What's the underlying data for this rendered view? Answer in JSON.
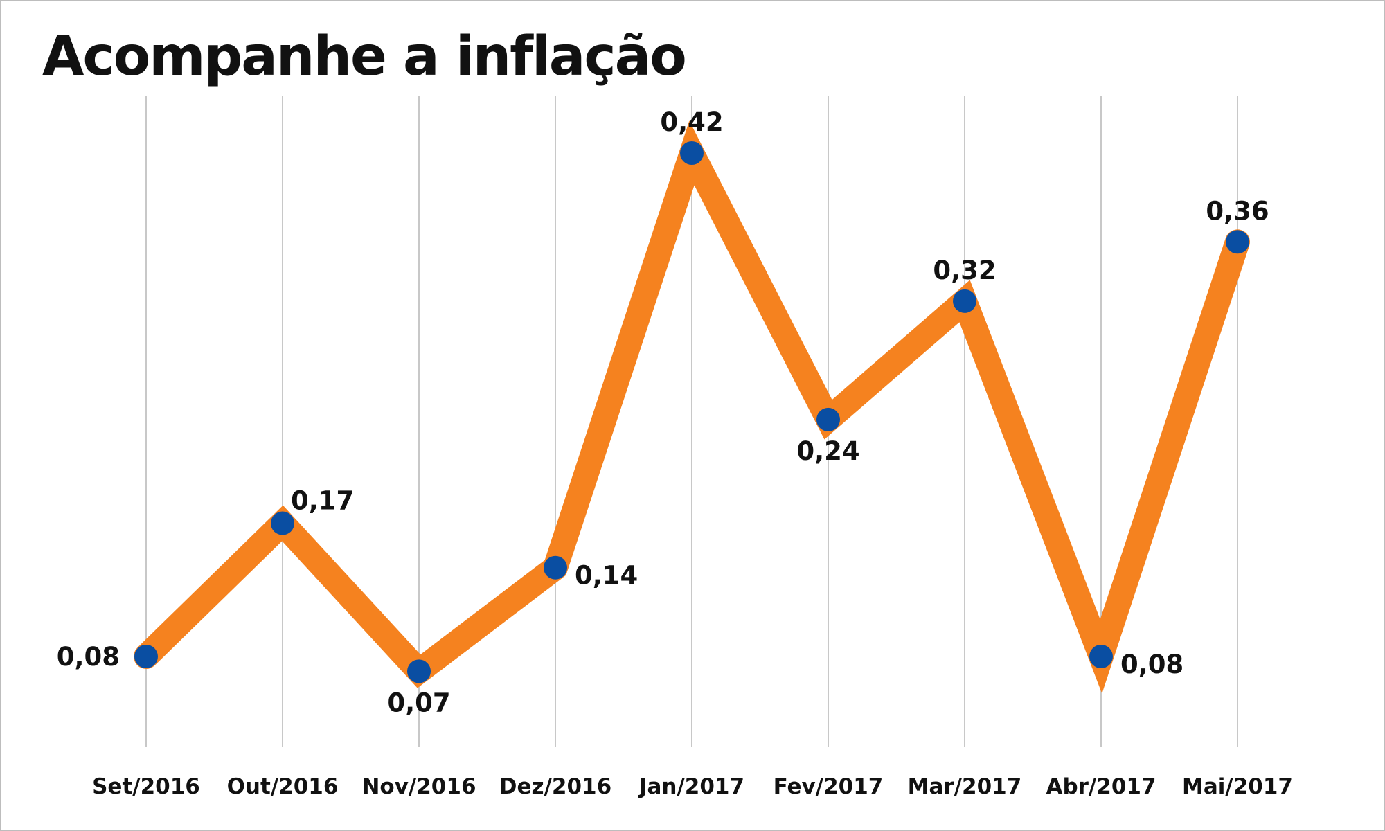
{
  "chart_data": {
    "type": "line",
    "title": "Acompanhe a inflação",
    "xlabel": "",
    "ylabel": "",
    "categories": [
      "Set/2016",
      "Out/2016",
      "Nov/2016",
      "Dez/2016",
      "Jan/2017",
      "Fev/2017",
      "Mar/2017",
      "Abr/2017",
      "Mai/2017"
    ],
    "values": [
      0.08,
      0.17,
      0.07,
      0.14,
      0.42,
      0.24,
      0.32,
      0.08,
      0.36
    ],
    "data_labels": [
      "0,08",
      "0,17",
      "0,07",
      "0,14",
      "0,42",
      "0,24",
      "0,32",
      "0,08",
      "0,36"
    ],
    "label_placement": [
      "left",
      "upper-right",
      "below",
      "right",
      "above",
      "below",
      "above",
      "right",
      "above"
    ],
    "ylim": [
      0,
      0.45
    ],
    "grid": "vertical",
    "legend": "none",
    "colors": {
      "line": "#f5821f",
      "marker": "#0a4ea2",
      "grid": "#c8c8c8",
      "text": "#111111"
    }
  }
}
